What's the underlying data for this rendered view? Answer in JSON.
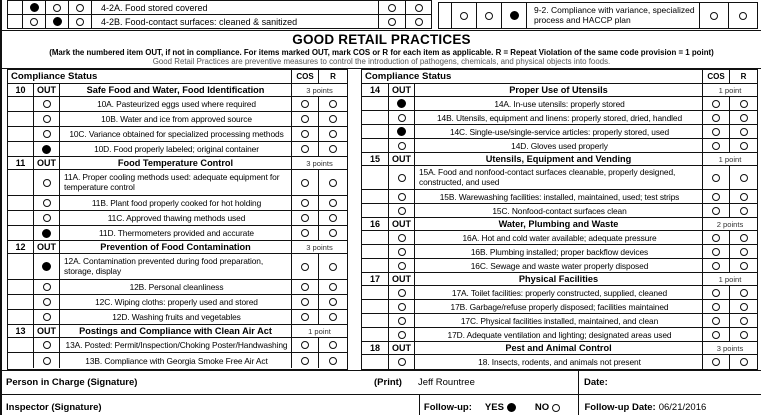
{
  "top_section": {
    "left_items": [
      {
        "label": "4-2A. Food stored covered",
        "marks": [
          "filled",
          "empty",
          "empty"
        ],
        "cos": "empty",
        "r": "empty"
      },
      {
        "label": "4-2B. Food-contact surfaces: cleaned & sanitized",
        "marks": [
          "empty",
          "filled",
          "empty"
        ],
        "cos": "empty",
        "r": "empty"
      }
    ],
    "right_item": {
      "label": "9-2. Compliance with variance, specialized process and HACCP plan",
      "marks": [
        "empty",
        "empty",
        "filled"
      ],
      "cos": "empty",
      "r": "empty"
    }
  },
  "header": {
    "title": "GOOD RETAIL PRACTICES",
    "instruction": "(Mark the numbered item OUT, if not in compliance. For items marked OUT, mark COS or R for each item as applicable. R = Repeat Violation of the same code provision = 1 point)",
    "note": "Good Retail Practices are preventive measures to control the introduction of pathogens, chemicals, and physical objects into foods."
  },
  "table_header": {
    "status": "Compliance Status",
    "cos": "COS",
    "r": "R"
  },
  "tables": {
    "left": {
      "sections": [
        {
          "number": "10",
          "out": "OUT",
          "title": "Safe Food and Water, Food Identification",
          "points": "3 points",
          "items": [
            {
              "label": "10A. Pasteurized eggs used where required",
              "mark": "empty",
              "cos": "empty",
              "r": "empty"
            },
            {
              "label": "10B. Water and ice from approved source",
              "mark": "empty",
              "cos": "empty",
              "r": "empty"
            },
            {
              "label": "10C. Variance obtained for specialized processing methods",
              "mark": "empty",
              "cos": "empty",
              "r": "empty"
            },
            {
              "label": "10D. Food properly labeled; original container",
              "mark": "filled",
              "cos": "empty",
              "r": "empty"
            }
          ]
        },
        {
          "number": "11",
          "out": "OUT",
          "title": "Food Temperature Control",
          "points": "3 points",
          "items": [
            {
              "label": "11A. Proper cooling methods used: adequate equipment for temperature control",
              "mark": "empty",
              "cos": "empty",
              "r": "empty",
              "lines": 2
            },
            {
              "label": "11B. Plant food properly cooked for hot holding",
              "mark": "empty",
              "cos": "empty",
              "r": "empty"
            },
            {
              "label": "11C. Approved thawing methods used",
              "mark": "empty",
              "cos": "empty",
              "r": "empty"
            },
            {
              "label": "11D. Thermometers provided and accurate",
              "mark": "filled",
              "cos": "empty",
              "r": "empty"
            }
          ]
        },
        {
          "number": "12",
          "out": "OUT",
          "title": "Prevention of Food Contamination",
          "points": "3 points",
          "items": [
            {
              "label": "12A. Contamination prevented during food preparation, storage, display",
              "mark": "filled",
              "cos": "empty",
              "r": "empty",
              "lines": 2
            },
            {
              "label": "12B. Personal cleanliness",
              "mark": "empty",
              "cos": "empty",
              "r": "empty"
            },
            {
              "label": "12C. Wiping cloths: properly used and stored",
              "mark": "empty",
              "cos": "empty",
              "r": "empty"
            },
            {
              "label": "12D. Washing fruits and vegetables",
              "mark": "empty",
              "cos": "empty",
              "r": "empty"
            }
          ]
        },
        {
          "number": "13",
          "out": "OUT",
          "title": "Postings and Compliance with Clean Air Act",
          "points": "1 point",
          "items": [
            {
              "label": "13A. Posted: Permit/Inspection/Choking Poster/Handwashing",
              "mark": "empty",
              "cos": "empty",
              "r": "empty"
            },
            {
              "label": "13B. Compliance with Georgia Smoke Free Air Act",
              "mark": "empty",
              "cos": "empty",
              "r": "empty"
            }
          ]
        }
      ]
    },
    "right": {
      "sections": [
        {
          "number": "14",
          "out": "OUT",
          "title": "Proper Use of Utensils",
          "points": "1 point",
          "items": [
            {
              "label": "14A. In-use utensils: properly stored",
              "mark": "filled",
              "cos": "empty",
              "r": "empty"
            },
            {
              "label": "14B. Utensils, equipment and linens: properly stored, dried, handled",
              "mark": "empty",
              "cos": "empty",
              "r": "empty"
            },
            {
              "label": "14C. Single-use/single-service articles: properly stored, used",
              "mark": "filled",
              "cos": "empty",
              "r": "empty"
            },
            {
              "label": "14D. Gloves used properly",
              "mark": "empty",
              "cos": "empty",
              "r": "empty"
            }
          ]
        },
        {
          "number": "15",
          "out": "OUT",
          "title": "Utensils, Equipment and Vending",
          "points": "1 point",
          "items": [
            {
              "label": "15A. Food and nonfood-contact surfaces cleanable, properly designed, constructed, and used",
              "mark": "empty",
              "cos": "empty",
              "r": "empty",
              "lines": 2
            },
            {
              "label": "15B. Warewashing facilities: installed, maintained, used; test strips",
              "mark": "empty",
              "cos": "empty",
              "r": "empty"
            },
            {
              "label": "15C. Nonfood-contact surfaces clean",
              "mark": "empty",
              "cos": "empty",
              "r": "empty"
            }
          ]
        },
        {
          "number": "16",
          "out": "OUT",
          "title": "Water, Plumbing and Waste",
          "points": "2 points",
          "items": [
            {
              "label": "16A. Hot and cold water available; adequate pressure",
              "mark": "empty",
              "cos": "empty",
              "r": "empty"
            },
            {
              "label": "16B. Plumbing installed; proper backflow devices",
              "mark": "empty",
              "cos": "empty",
              "r": "empty"
            },
            {
              "label": "16C. Sewage and waste water properly disposed",
              "mark": "empty",
              "cos": "empty",
              "r": "empty"
            }
          ]
        },
        {
          "number": "17",
          "out": "OUT",
          "title": "Physical Facilities",
          "points": "1 point",
          "items": [
            {
              "label": "17A. Toilet facilities: properly constructed, supplied, cleaned",
              "mark": "empty",
              "cos": "empty",
              "r": "empty"
            },
            {
              "label": "17B. Garbage/refuse properly disposed; facilities maintained",
              "mark": "empty",
              "cos": "empty",
              "r": "empty"
            },
            {
              "label": "17C. Physical facilities installed, maintained, and clean",
              "mark": "empty",
              "cos": "empty",
              "r": "empty"
            },
            {
              "label": "17D. Adequate ventilation and lighting; designated areas used",
              "mark": "empty",
              "cos": "empty",
              "r": "empty"
            }
          ]
        },
        {
          "number": "18",
          "out": "OUT",
          "title": "Pest and Animal Control",
          "points": "3 points",
          "items": [
            {
              "label": "18. Insects, rodents, and animals not present",
              "mark": "empty",
              "cos": "empty",
              "r": "empty"
            }
          ]
        }
      ]
    }
  },
  "footer": {
    "person_label": "Person in Charge (Signature)",
    "print_label": "(Print)",
    "print_name": "Jeff Rountree",
    "date_label": "Date:",
    "inspector_label": "Inspector (Signature)",
    "followup_label": "Follow-up:",
    "yes_label": "YES",
    "yes_mark": "filled",
    "no_label": "NO",
    "no_mark": "empty",
    "followup_date_label": "Follow-up Date:",
    "followup_date": "06/21/2016"
  }
}
